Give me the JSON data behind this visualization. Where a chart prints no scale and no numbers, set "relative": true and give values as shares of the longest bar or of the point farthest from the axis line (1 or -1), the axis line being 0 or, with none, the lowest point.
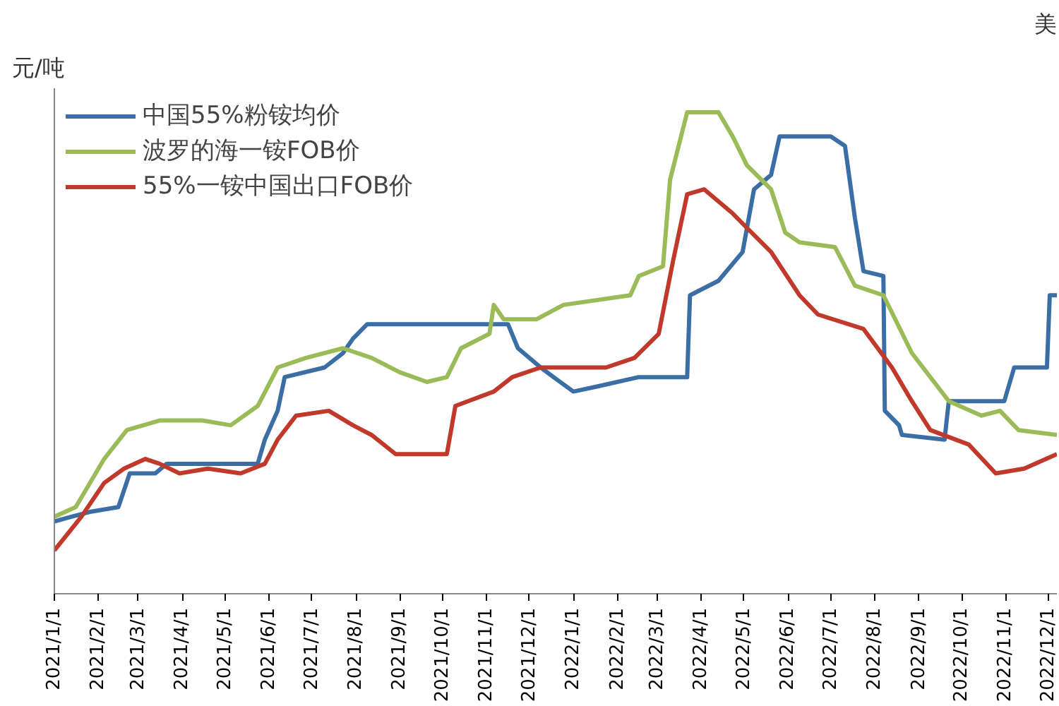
{
  "chart_data": {
    "type": "line",
    "relative": true,
    "ylabel": "元/吨",
    "annotations": [
      "美"
    ],
    "xlim": [
      "2021-01-01",
      "2022-12-07"
    ],
    "xticks": [
      {
        "value": "2021-01-01",
        "label": "2021/1/1"
      },
      {
        "value": "2021-02-01",
        "label": "2021/2/1"
      },
      {
        "value": "2021-03-01",
        "label": "2021/3/1"
      },
      {
        "value": "2021-04-01",
        "label": "2021/4/1"
      },
      {
        "value": "2021-05-01",
        "label": "2021/5/1"
      },
      {
        "value": "2021-06-01",
        "label": "2021/6/1"
      },
      {
        "value": "2021-07-01",
        "label": "2021/7/1"
      },
      {
        "value": "2021-08-01",
        "label": "2021/8/1"
      },
      {
        "value": "2021-09-01",
        "label": "2021/9/1"
      },
      {
        "value": "2021-10-01",
        "label": "2021/10/1"
      },
      {
        "value": "2021-11-01",
        "label": "2021/11/1"
      },
      {
        "value": "2021-12-01",
        "label": "2021/12/1"
      },
      {
        "value": "2022-01-01",
        "label": "2022/1/1"
      },
      {
        "value": "2022-02-01",
        "label": "2022/2/1"
      },
      {
        "value": "2022-03-01",
        "label": "2022/3/1"
      },
      {
        "value": "2022-04-01",
        "label": "2022/4/1"
      },
      {
        "value": "2022-05-01",
        "label": "2022/5/1"
      },
      {
        "value": "2022-06-01",
        "label": "2022/6/1"
      },
      {
        "value": "2022-07-01",
        "label": "2022/7/1"
      },
      {
        "value": "2022-08-01",
        "label": "2022/8/1"
      },
      {
        "value": "2022-09-01",
        "label": "2022/9/1"
      },
      {
        "value": "2022-10-01",
        "label": "2022/10/1"
      },
      {
        "value": "2022-11-01",
        "label": "2022/11/1"
      },
      {
        "value": "2022-12-01",
        "label": "2022/12/1"
      }
    ],
    "legend": "top left",
    "grid": false,
    "series": [
      {
        "name": "中国55%粉铵均价",
        "color": "#3b6ea5",
        "x": [
          "2021-01-01",
          "2021-01-13",
          "2021-01-26",
          "2021-02-15",
          "2021-02-23",
          "2021-03-13",
          "2021-03-21",
          "2021-04-22",
          "2021-05-24",
          "2021-05-29",
          "2021-06-07",
          "2021-06-12",
          "2021-07-10",
          "2021-07-23",
          "2021-07-30",
          "2021-08-09",
          "2021-09-01",
          "2021-11-16",
          "2021-11-23",
          "2021-12-09",
          "2021-12-18",
          "2022-01-01",
          "2022-01-17",
          "2022-02-16",
          "2022-03-22",
          "2022-03-24",
          "2022-04-13",
          "2022-04-30",
          "2022-05-08",
          "2022-05-20",
          "2022-05-26",
          "2022-07-01",
          "2022-07-11",
          "2022-07-18",
          "2022-07-24",
          "2022-08-07",
          "2022-08-08",
          "2022-08-18",
          "2022-08-20",
          "2022-09-19",
          "2022-09-22",
          "2022-10-31",
          "2022-11-07",
          "2022-11-30",
          "2022-12-02",
          "2022-12-07"
        ],
        "values": [
          0.15,
          0.16,
          0.17,
          0.18,
          0.25,
          0.25,
          0.27,
          0.27,
          0.27,
          0.32,
          0.38,
          0.45,
          0.47,
          0.5,
          0.53,
          0.56,
          0.56,
          0.56,
          0.51,
          0.47,
          0.45,
          0.42,
          0.43,
          0.45,
          0.45,
          0.62,
          0.65,
          0.71,
          0.84,
          0.87,
          0.95,
          0.95,
          0.93,
          0.78,
          0.67,
          0.66,
          0.38,
          0.35,
          0.33,
          0.32,
          0.4,
          0.4,
          0.47,
          0.47,
          0.62,
          0.62
        ]
      },
      {
        "name": "波罗的海一铵FOB价",
        "color": "#9bbb59",
        "x": [
          "2021-01-01",
          "2021-01-16",
          "2021-01-26",
          "2021-02-05",
          "2021-02-21",
          "2021-03-16",
          "2021-04-15",
          "2021-05-05",
          "2021-05-24",
          "2021-06-07",
          "2021-06-27",
          "2021-07-23",
          "2021-08-12",
          "2021-09-01",
          "2021-09-20",
          "2021-10-04",
          "2021-10-14",
          "2021-11-03",
          "2021-11-06",
          "2021-11-13",
          "2021-12-06",
          "2021-12-25",
          "2022-02-10",
          "2022-02-16",
          "2022-03-05",
          "2022-03-10",
          "2022-03-22",
          "2022-04-13",
          "2022-04-23",
          "2022-05-03",
          "2022-05-20",
          "2022-05-30",
          "2022-06-09",
          "2022-07-04",
          "2022-07-18",
          "2022-08-07",
          "2022-08-27",
          "2022-09-22",
          "2022-10-15",
          "2022-10-28",
          "2022-11-10",
          "2022-12-07"
        ],
        "values": [
          0.16,
          0.18,
          0.23,
          0.28,
          0.34,
          0.36,
          0.36,
          0.35,
          0.39,
          0.47,
          0.49,
          0.51,
          0.49,
          0.46,
          0.44,
          0.45,
          0.51,
          0.54,
          0.6,
          0.57,
          0.57,
          0.6,
          0.62,
          0.66,
          0.68,
          0.86,
          1.0,
          1.0,
          0.95,
          0.89,
          0.84,
          0.75,
          0.73,
          0.72,
          0.64,
          0.62,
          0.5,
          0.4,
          0.37,
          0.38,
          0.34,
          0.33
        ]
      },
      {
        "name": "55%一铵中国出口FOB价",
        "color": "#c0392b",
        "x": [
          "2021-01-01",
          "2021-01-20",
          "2021-02-05",
          "2021-02-19",
          "2021-03-06",
          "2021-03-16",
          "2021-03-30",
          "2021-04-19",
          "2021-05-12",
          "2021-05-29",
          "2021-06-07",
          "2021-06-20",
          "2021-07-13",
          "2021-07-30",
          "2021-08-12",
          "2021-08-29",
          "2021-09-14",
          "2021-10-04",
          "2021-10-10",
          "2021-11-06",
          "2021-11-19",
          "2021-12-09",
          "2022-01-24",
          "2022-02-13",
          "2022-03-02",
          "2022-03-12",
          "2022-03-22",
          "2022-04-03",
          "2022-04-23",
          "2022-05-03",
          "2022-05-20",
          "2022-06-09",
          "2022-06-22",
          "2022-07-24",
          "2022-08-13",
          "2022-08-27",
          "2022-09-09",
          "2022-10-06",
          "2022-10-25",
          "2022-11-14",
          "2022-12-07"
        ],
        "values": [
          0.09,
          0.16,
          0.23,
          0.26,
          0.28,
          0.27,
          0.25,
          0.26,
          0.25,
          0.27,
          0.32,
          0.37,
          0.38,
          0.35,
          0.33,
          0.29,
          0.29,
          0.29,
          0.39,
          0.42,
          0.45,
          0.47,
          0.47,
          0.49,
          0.54,
          0.69,
          0.83,
          0.84,
          0.79,
          0.76,
          0.71,
          0.62,
          0.58,
          0.55,
          0.47,
          0.4,
          0.34,
          0.31,
          0.25,
          0.26,
          0.29
        ]
      }
    ]
  }
}
